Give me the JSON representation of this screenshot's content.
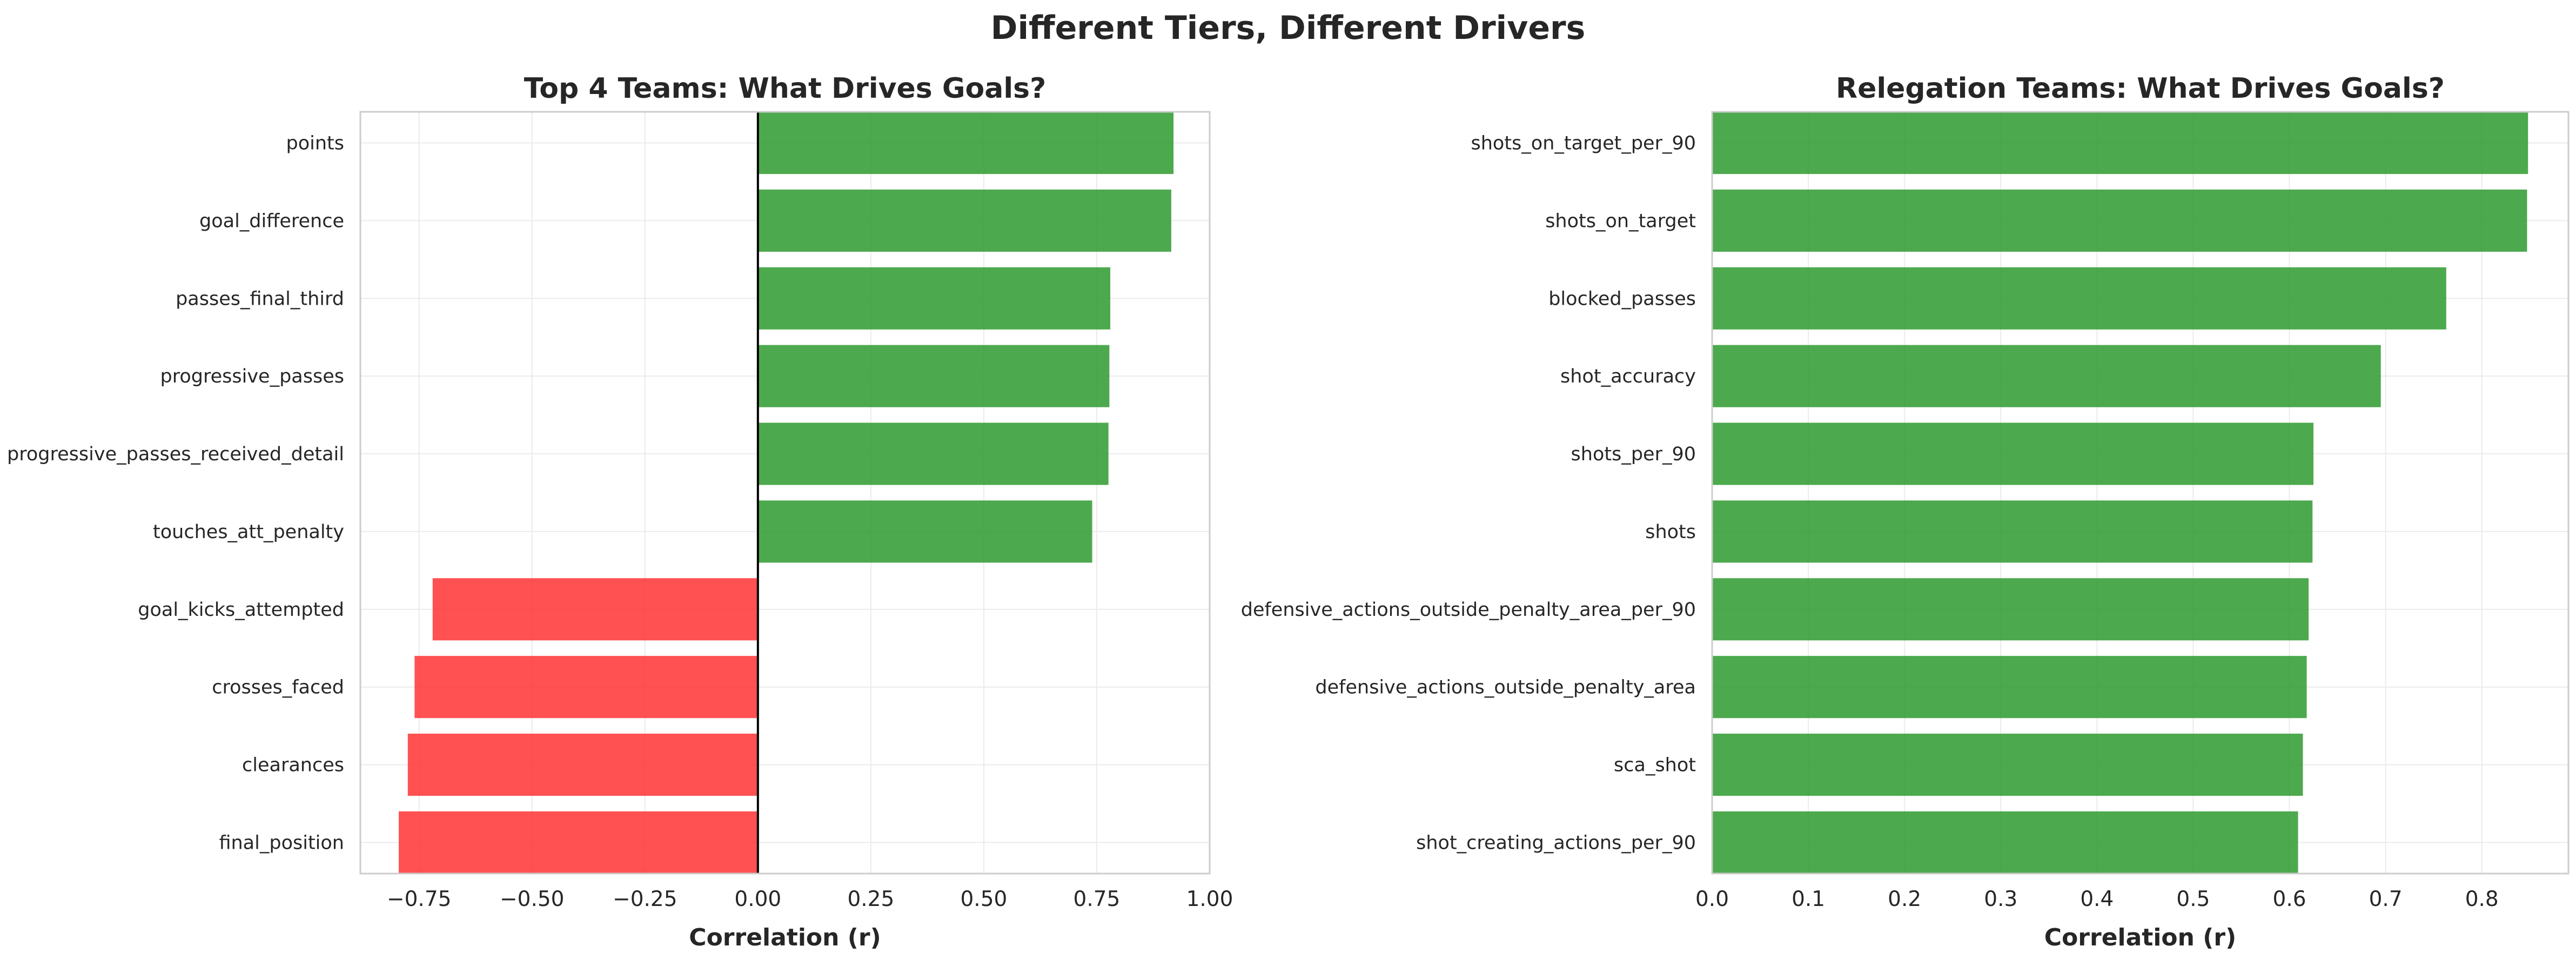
{
  "figure": {
    "title": "Different Tiers, Different Drivers"
  },
  "chart_data": [
    {
      "type": "bar",
      "orientation": "horizontal",
      "title": "Top 4 Teams: What Drives Goals?",
      "xlabel": "Correlation (r)",
      "ylabel": "",
      "xlim": [
        -0.88,
        1.0
      ],
      "xticks": [
        -0.75,
        -0.5,
        -0.25,
        0.0,
        0.25,
        0.5,
        0.75,
        1.0
      ],
      "xtick_labels": [
        "−0.75",
        "−0.50",
        "−0.25",
        "0.00",
        "0.25",
        "0.50",
        "0.75",
        "1.00"
      ],
      "zero_line": true,
      "grid": true,
      "positive_color": "#2e9a2e",
      "negative_color": "#ff3333",
      "categories": [
        "points",
        "goal_difference",
        "passes_final_third",
        "progressive_passes",
        "progressive_passes_received_detail",
        "touches_att_penalty",
        "goal_kicks_attempted",
        "crosses_faced",
        "clearances",
        "final_position"
      ],
      "values": [
        0.92,
        0.915,
        0.78,
        0.778,
        0.776,
        0.74,
        -0.72,
        -0.76,
        -0.775,
        -0.795
      ]
    },
    {
      "type": "bar",
      "orientation": "horizontal",
      "title": "Relegation Teams: What Drives Goals?",
      "xlabel": "Correlation (r)",
      "ylabel": "",
      "xlim": [
        0.0,
        0.89
      ],
      "xticks": [
        0.0,
        0.1,
        0.2,
        0.3,
        0.4,
        0.5,
        0.6,
        0.7,
        0.8
      ],
      "xtick_labels": [
        "0.0",
        "0.1",
        "0.2",
        "0.3",
        "0.4",
        "0.5",
        "0.6",
        "0.7",
        "0.8"
      ],
      "zero_line": false,
      "grid": true,
      "positive_color": "#2e9a2e",
      "negative_color": "#ff3333",
      "categories": [
        "shots_on_target_per_90",
        "shots_on_target",
        "blocked_passes",
        "shot_accuracy",
        "shots_per_90",
        "shots",
        "defensive_actions_outside_penalty_area_per_90",
        "defensive_actions_outside_penalty_area",
        "sca_shot",
        "shot_creating_actions_per_90"
      ],
      "values": [
        0.848,
        0.847,
        0.763,
        0.695,
        0.625,
        0.624,
        0.62,
        0.618,
        0.614,
        0.609
      ]
    }
  ]
}
